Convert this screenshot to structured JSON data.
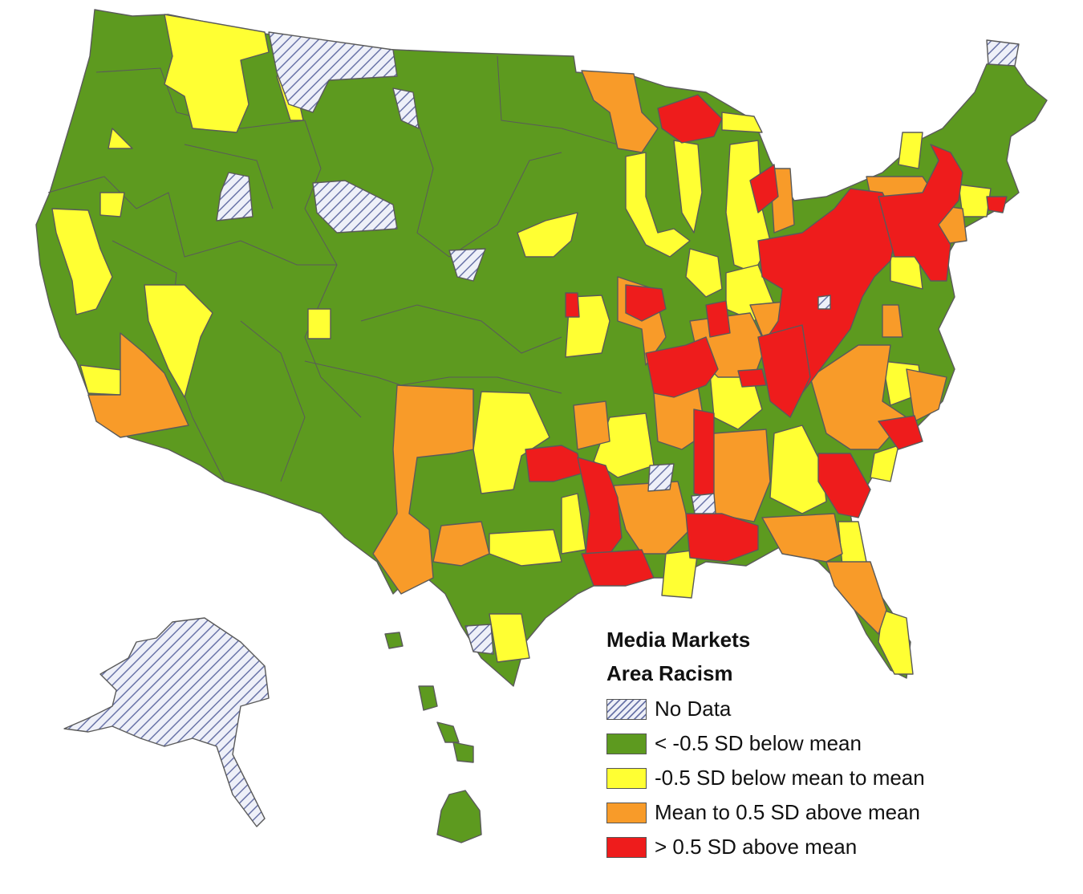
{
  "legend": {
    "title": "Media Markets",
    "subtitle": "Area Racism",
    "items": [
      {
        "label": "No Data",
        "color": "hatch"
      },
      {
        "label": "< -0.5 SD below mean",
        "color": "#5d9a1f"
      },
      {
        "label": "-0.5 SD below mean to mean",
        "color": "#ffff33"
      },
      {
        "label": "Mean to 0.5 SD above mean",
        "color": "#f89b29"
      },
      {
        "label": "> 0.5 SD above mean",
        "color": "#ee1c1c"
      }
    ]
  },
  "colors": {
    "green": "#5d9a1f",
    "yellow": "#ffff33",
    "orange": "#f89b29",
    "red": "#ee1c1c",
    "hatch_line": "#6a74a8",
    "border": "#5a5a5a"
  }
}
